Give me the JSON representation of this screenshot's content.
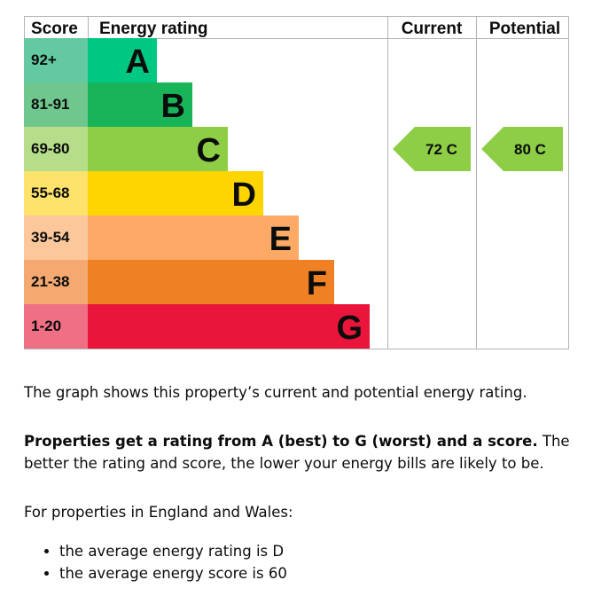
{
  "chart_data": {
    "type": "bar",
    "headers": {
      "score": "Score",
      "rating": "Energy rating",
      "current": "Current",
      "potential": "Potential"
    },
    "bands": [
      {
        "letter": "A",
        "range": "92+",
        "color": "#00c781",
        "score_bg": "#62c9a1"
      },
      {
        "letter": "B",
        "range": "81-91",
        "color": "#19b459",
        "score_bg": "#70c78d"
      },
      {
        "letter": "C",
        "range": "69-80",
        "color": "#8dce46",
        "score_bg": "#b6de8a"
      },
      {
        "letter": "D",
        "range": "55-68",
        "color": "#ffd500",
        "score_bg": "#fde26c"
      },
      {
        "letter": "E",
        "range": "39-54",
        "color": "#fcaa65",
        "score_bg": "#fbc79b"
      },
      {
        "letter": "F",
        "range": "21-38",
        "color": "#ef8023",
        "score_bg": "#f3a970"
      },
      {
        "letter": "G",
        "range": "1-20",
        "color": "#e9153b",
        "score_bg": "#ef6f85"
      }
    ],
    "current": {
      "score": 72,
      "band": "C",
      "label": "72  C",
      "color": "#8dce46"
    },
    "potential": {
      "score": 80,
      "band": "C",
      "label": "80  C",
      "color": "#8dce46"
    }
  },
  "text": {
    "intro": "The graph shows this property’s current and potential energy rating.",
    "rating_bold": "Properties get a rating from A (best) to G (worst) and a score.",
    "rating_rest": " The better the rating and score, the lower your energy bills are likely to be.",
    "region_intro": "For properties in England and Wales:",
    "bullets": [
      "the average energy rating is D",
      "the average energy score is 60"
    ]
  }
}
